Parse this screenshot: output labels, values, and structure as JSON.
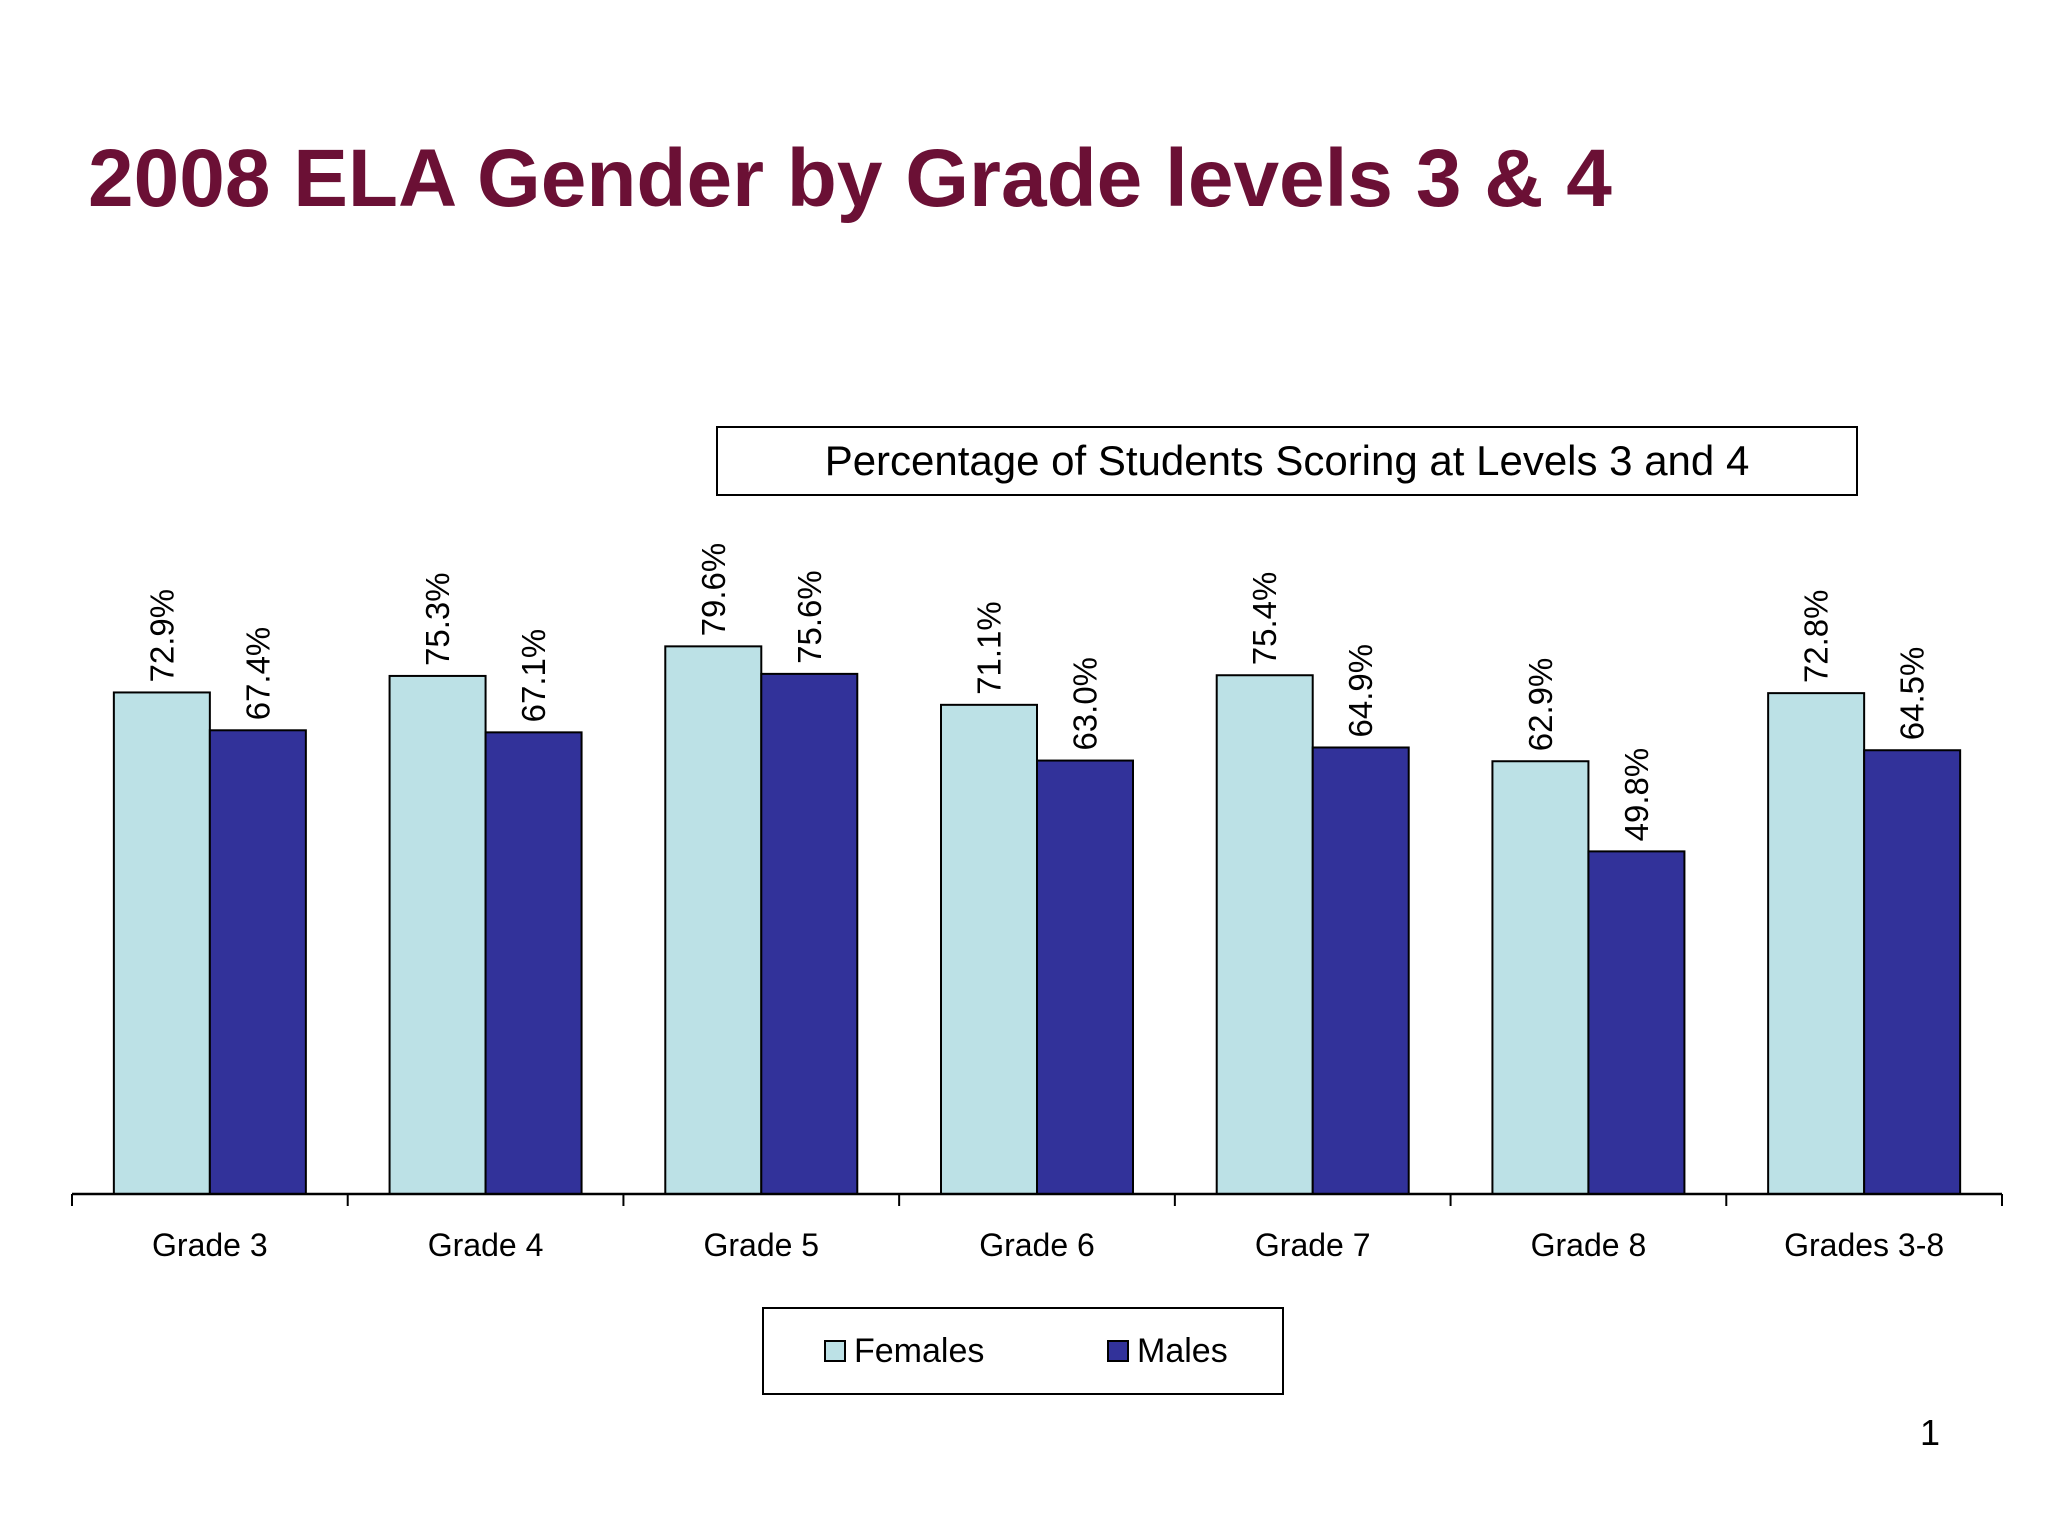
{
  "slide": {
    "title": "2008 ELA Gender by Grade levels 3 & 4",
    "page_number": "1"
  },
  "colors": {
    "title": "#6b1035",
    "females": "#bce1e6",
    "males": "#32329a"
  },
  "legend": {
    "females_label": "Females",
    "males_label": "Males"
  },
  "chart_data": {
    "type": "bar",
    "title": "Percentage of Students Scoring at Levels 3 and 4",
    "xlabel": "",
    "ylabel": "",
    "ylim": [
      0,
      100
    ],
    "grid": false,
    "legend_position": "bottom",
    "categories": [
      "Grade 3",
      "Grade 4",
      "Grade 5",
      "Grade 6",
      "Grade 7",
      "Grade 8",
      "Grades 3-8"
    ],
    "series": [
      {
        "name": "Females",
        "values": [
          72.9,
          75.3,
          79.6,
          71.1,
          75.4,
          62.9,
          72.8
        ],
        "labels": [
          "72.9%",
          "75.3%",
          "79.6%",
          "71.1%",
          "75.4%",
          "62.9%",
          "72.8%"
        ]
      },
      {
        "name": "Males",
        "values": [
          67.4,
          67.1,
          75.6,
          63.0,
          64.9,
          49.8,
          64.5
        ],
        "labels": [
          "67.4%",
          "67.1%",
          "75.6%",
          "63.0%",
          "64.9%",
          "49.8%",
          "64.5%"
        ]
      }
    ]
  }
}
